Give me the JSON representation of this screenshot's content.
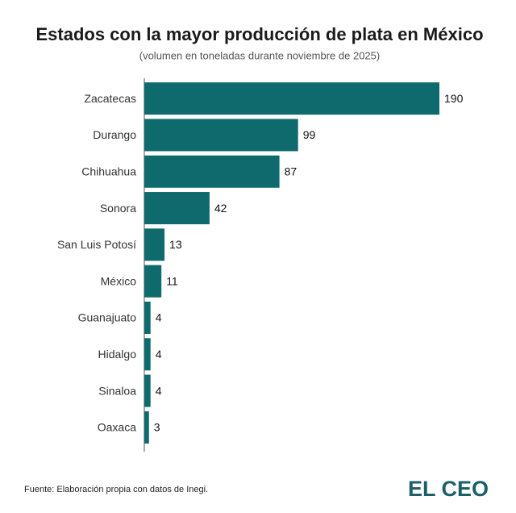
{
  "chart_data": {
    "type": "hbar",
    "title": "Estados con la mayor producción de plata en México",
    "subtitle": "(volumen en toneladas durante noviembre de 2025)",
    "categories": [
      "Zacatecas",
      "Durango",
      "Chihuahua",
      "Sonora",
      "San Luis Potosí",
      "México",
      "Guanajuato",
      "Hidalgo",
      "Sinaloa",
      "Oaxaca"
    ],
    "values": [
      190,
      99,
      87,
      42,
      13,
      11,
      4,
      4,
      4,
      3
    ],
    "color": "#0f6a6d",
    "xlim": [
      0,
      190
    ],
    "source": "Fuente: Elaboración propia con datos de Inegi.",
    "logo": "EL CEO"
  }
}
